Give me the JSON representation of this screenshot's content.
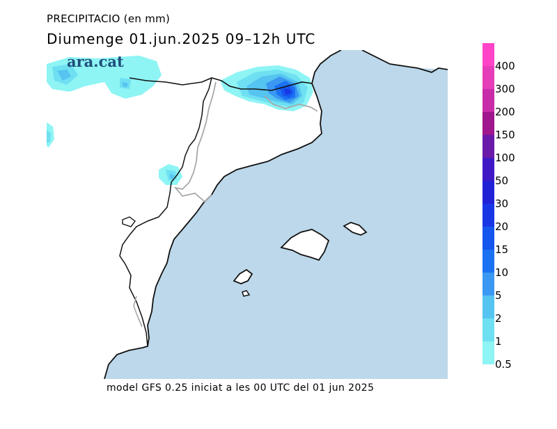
{
  "header": {
    "line1": "PRECIPITACIO (en mm)",
    "line2": "Diumenge  01.jun.2025 09–12h UTC"
  },
  "brand": {
    "logo_text": "ara.cat"
  },
  "footer": {
    "model_text": "model GFS 0.25 iniciat a les 00 UTC del 01 jun 2025"
  },
  "colors": {
    "sea": "#bcd8ea",
    "land": "#ffffff",
    "coast": "#111111",
    "border": "#a8a8a8"
  },
  "legend": {
    "unit": "mm",
    "levels": [
      {
        "label": "400",
        "color": "#ff44c8"
      },
      {
        "label": "300",
        "color": "#e63db8"
      },
      {
        "label": "200",
        "color": "#c82ca8"
      },
      {
        "label": "150",
        "color": "#a0168c"
      },
      {
        "label": "100",
        "color": "#6a1aa8"
      },
      {
        "label": "50",
        "color": "#3f19c6"
      },
      {
        "label": "30",
        "color": "#2121d6"
      },
      {
        "label": "20",
        "color": "#1836e6"
      },
      {
        "label": "15",
        "color": "#1455ee"
      },
      {
        "label": "10",
        "color": "#1a72f2"
      },
      {
        "label": "5",
        "color": "#3a98f2"
      },
      {
        "label": "2",
        "color": "#55c4f0"
      },
      {
        "label": "1",
        "color": "#6ee0f2"
      },
      {
        "label": "0.5",
        "color": "#8ef4f4"
      }
    ]
  }
}
